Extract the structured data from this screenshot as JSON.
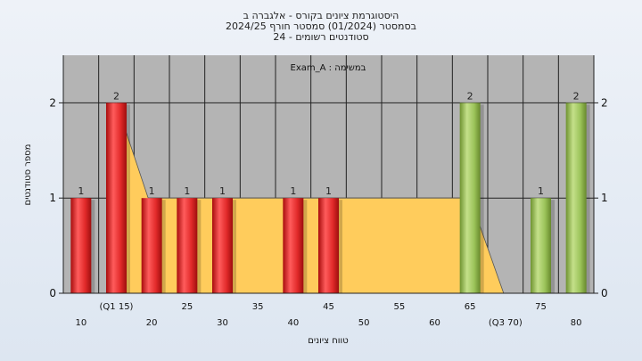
{
  "header": {
    "title": "היסטוגרמת ציונים בקורס - אלגברה ב",
    "subtitle": "בסמסטר  (01/2024)  סמסטר חורף  2024/25",
    "subtitle2": "סטודנטים רשומים - 24"
  },
  "chart_data": {
    "type": "bar",
    "title": "היסטוגרמת ציונים בקורס - אלגברה ב",
    "xlabel": "טווח ציונים",
    "ylabel": "מספר סטודנטים",
    "ylim": [
      0,
      2.5
    ],
    "y_ticks": [
      0,
      1,
      2
    ],
    "legend": {
      "label": "Exam_A : במשימה",
      "placement": "top-center"
    },
    "grid": true,
    "categories": [
      10,
      15,
      20,
      25,
      30,
      35,
      40,
      45,
      50,
      55,
      60,
      65,
      70,
      75,
      80
    ],
    "x_tick_labels": [
      "10",
      "(Q1 15)",
      "20",
      "25",
      "30",
      "35",
      "40",
      "45",
      "50",
      "55",
      "60",
      "65",
      "(Q3 70)",
      "75",
      "80"
    ],
    "values": [
      1,
      2,
      1,
      1,
      1,
      0,
      1,
      1,
      0,
      0,
      0,
      2,
      0,
      1,
      2
    ],
    "data_labels": [
      "1",
      "2",
      "1",
      "1",
      "1",
      "",
      "1",
      "1",
      "",
      "",
      "",
      "2",
      "",
      "1",
      "2"
    ],
    "bar_colors": [
      "red",
      "red",
      "red",
      "red",
      "red",
      "",
      "red",
      "red",
      "",
      "",
      "",
      "green",
      "",
      "green",
      "green"
    ],
    "colors": {
      "red": "#e53030",
      "green": "#9cc45a",
      "area": "#ffcc5c",
      "plot_bg": "#b4b4b4"
    },
    "quartile_band": {
      "from": 15,
      "to": 70
    }
  }
}
